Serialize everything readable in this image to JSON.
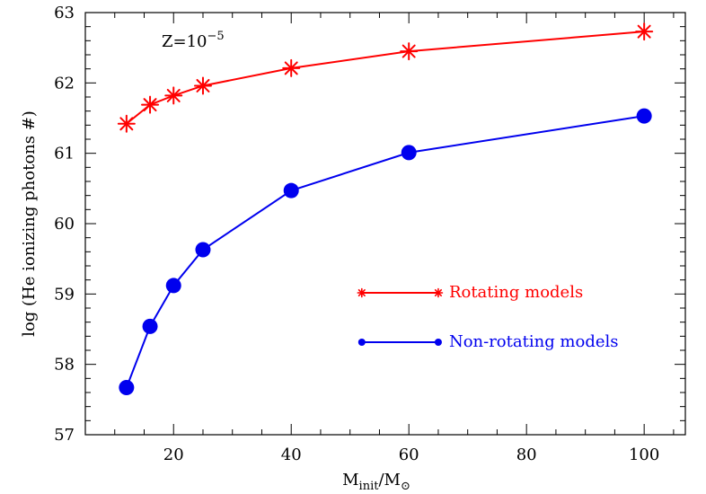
{
  "chart_data": {
    "type": "line",
    "xlabel": {
      "main": "M",
      "sub1": "init",
      "sep": "/M",
      "sub2": "⊙"
    },
    "ylabel": "log (He ionizing photons #)",
    "xlim": [
      5,
      107
    ],
    "ylim": [
      57,
      63
    ],
    "xticks": [
      20,
      40,
      60,
      80,
      100
    ],
    "yticks": [
      57,
      58,
      59,
      60,
      61,
      62,
      63
    ],
    "annotation": {
      "base": "Z=10",
      "exp": "−5"
    },
    "legend_placement": "center-right",
    "series": [
      {
        "name": "Rotating models",
        "color": "#ff0000",
        "marker": "asterisk",
        "x": [
          12,
          16,
          20,
          25,
          40,
          60,
          100
        ],
        "y": [
          61.42,
          61.69,
          61.82,
          61.96,
          62.21,
          62.45,
          62.73
        ]
      },
      {
        "name": "Non-rotating models",
        "color": "#0000ee",
        "marker": "circle",
        "x": [
          12,
          16,
          20,
          25,
          40,
          60,
          100
        ],
        "y": [
          57.67,
          58.54,
          59.12,
          59.63,
          60.47,
          61.01,
          61.53
        ]
      }
    ]
  }
}
